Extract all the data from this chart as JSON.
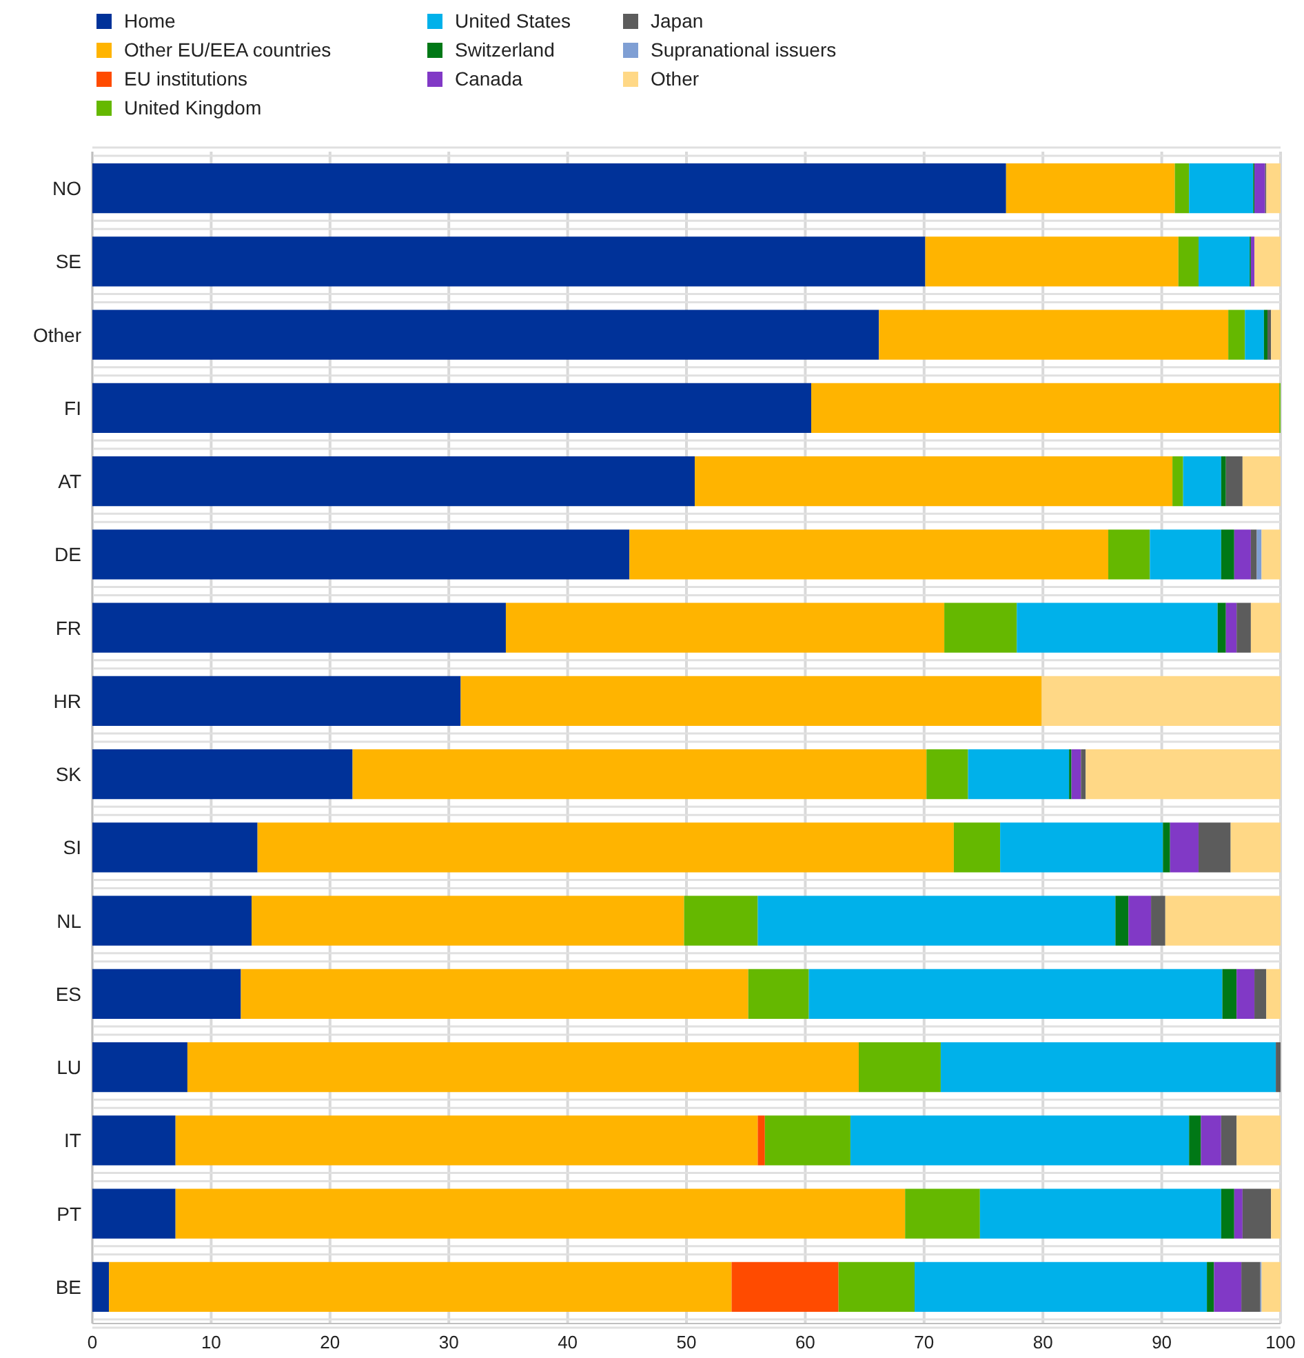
{
  "chart_data": {
    "type": "bar",
    "orientation": "horizontal",
    "stacked": true,
    "categories": [
      "NO",
      "SE",
      "Other",
      "FI",
      "AT",
      "DE",
      "FR",
      "HR",
      "SK",
      "SI",
      "NL",
      "ES",
      "LU",
      "IT",
      "PT",
      "BE"
    ],
    "series": [
      {
        "name": "Home",
        "color": "#003299",
        "values": [
          76.9,
          70.1,
          66.2,
          60.5,
          50.7,
          45.2,
          34.8,
          31.0,
          21.9,
          13.9,
          13.4,
          12.5,
          8.0,
          7.0,
          7.0,
          1.4
        ]
      },
      {
        "name": "Other EU/EEA countries",
        "color": "#ffb400",
        "values": [
          14.2,
          21.3,
          29.4,
          39.4,
          40.2,
          40.3,
          36.9,
          48.9,
          48.3,
          58.6,
          36.4,
          42.7,
          56.5,
          49.0,
          61.4,
          52.4
        ]
      },
      {
        "name": "EU institutions",
        "color": "#ff4b00",
        "values": [
          0,
          0,
          0,
          0,
          0,
          0,
          0,
          0,
          0,
          0,
          0,
          0,
          0,
          0.6,
          0,
          9.0
        ]
      },
      {
        "name": "United Kingdom",
        "color": "#65b800",
        "values": [
          1.2,
          1.7,
          1.4,
          0.1,
          0.9,
          3.5,
          6.1,
          0,
          3.5,
          3.9,
          6.2,
          5.1,
          6.9,
          7.2,
          6.3,
          6.4
        ]
      },
      {
        "name": "United States",
        "color": "#00b1ea",
        "values": [
          5.4,
          4.3,
          1.6,
          0,
          3.2,
          6.0,
          16.9,
          0,
          8.5,
          13.7,
          30.1,
          34.8,
          28.2,
          28.5,
          20.3,
          24.6
        ]
      },
      {
        "name": "Switzerland",
        "color": "#007816",
        "values": [
          0.1,
          0.1,
          0.3,
          0,
          0.4,
          1.1,
          0.7,
          0,
          0.2,
          0.6,
          1.1,
          1.2,
          0,
          1.0,
          1.1,
          0.6
        ]
      },
      {
        "name": "Canada",
        "color": "#8139c6",
        "values": [
          0.9,
          0.3,
          0,
          0,
          0,
          1.4,
          0.9,
          0,
          0.8,
          2.4,
          1.9,
          1.5,
          0,
          1.7,
          0.7,
          2.3
        ]
      },
      {
        "name": "Japan",
        "color": "#5c5c5c",
        "values": [
          0.1,
          0,
          0.3,
          0,
          1.4,
          0.5,
          1.2,
          0,
          0.4,
          2.7,
          1.2,
          1.0,
          0.4,
          1.3,
          2.4,
          1.6
        ]
      },
      {
        "name": "Supranational issuers",
        "color": "#7f9fd4",
        "values": [
          0,
          0,
          0,
          0,
          0,
          0.4,
          0,
          0,
          0,
          0,
          0,
          0,
          0,
          0,
          0,
          0.1
        ]
      },
      {
        "name": "Other",
        "color": "#ffd886",
        "values": [
          1.2,
          2.2,
          0.8,
          0,
          3.2,
          1.6,
          2.5,
          20.1,
          16.4,
          4.2,
          9.7,
          1.2,
          0,
          3.7,
          0.8,
          1.6
        ]
      }
    ],
    "xlim": [
      0,
      100
    ],
    "xticks": [
      0,
      10,
      20,
      30,
      40,
      50,
      60,
      70,
      80,
      90,
      100
    ],
    "grid": true,
    "legend": "top left"
  }
}
